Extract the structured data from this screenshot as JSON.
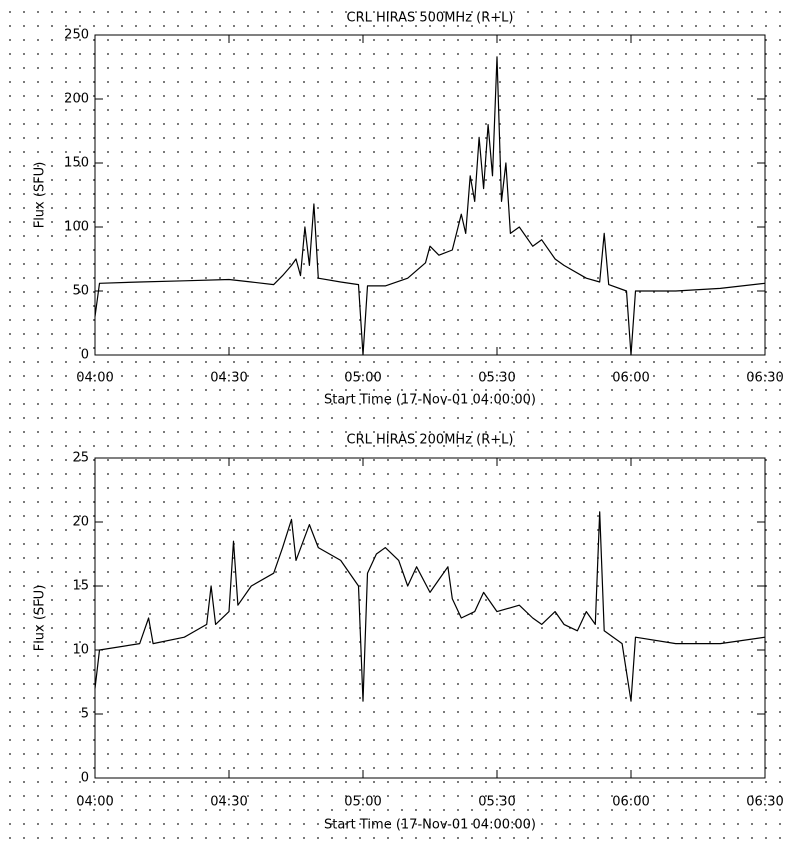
{
  "chart_data": [
    {
      "type": "line",
      "title": "CRL HIRAS 500MHz (R+L)",
      "xlabel": "Start Time (17-Nov-01 04:00:00)",
      "ylabel": "Flux (SFU)",
      "color": "#000000",
      "x": [
        "04:00",
        "04:01",
        "04:10",
        "04:20",
        "04:30",
        "04:35",
        "04:40",
        "04:42",
        "04:44",
        "04:45",
        "04:46",
        "04:47",
        "04:48",
        "04:49",
        "04:50",
        "04:55",
        "04:59",
        "05:00",
        "05:01",
        "05:05",
        "05:10",
        "05:14",
        "05:15",
        "05:17",
        "05:20",
        "05:22",
        "05:23",
        "05:24",
        "05:25",
        "05:26",
        "05:27",
        "05:28",
        "05:29",
        "05:30",
        "05:31",
        "05:32",
        "05:33",
        "05:35",
        "05:38",
        "05:40",
        "05:43",
        "05:45",
        "05:50",
        "05:53",
        "05:54",
        "05:55",
        "05:59",
        "06:00",
        "06:01",
        "06:10",
        "06:20",
        "06:30"
      ],
      "values": [
        30,
        56,
        57,
        58,
        59,
        57,
        55,
        62,
        70,
        75,
        62,
        100,
        70,
        118,
        60,
        57,
        55,
        0,
        54,
        54,
        60,
        72,
        85,
        78,
        82,
        110,
        95,
        140,
        120,
        170,
        130,
        180,
        140,
        233,
        120,
        150,
        95,
        100,
        85,
        90,
        75,
        70,
        60,
        57,
        95,
        55,
        50,
        0,
        50,
        50,
        52,
        56
      ],
      "xlim": [
        "04:00",
        "06:30"
      ],
      "xticks": [
        "04:00",
        "04:30",
        "05:00",
        "05:30",
        "06:00",
        "06:30"
      ],
      "ylim": [
        0,
        250
      ],
      "yticks": [
        0,
        50,
        100,
        150,
        200,
        250
      ]
    },
    {
      "type": "line",
      "title": "CRL HIRAS 200MHz (R+L)",
      "xlabel": "Start Time (17-Nov-01 04:00:00)",
      "ylabel": "Flux (SFU)",
      "color": "#000000",
      "x": [
        "04:00",
        "04:01",
        "04:10",
        "04:12",
        "04:13",
        "04:20",
        "04:25",
        "04:26",
        "04:27",
        "04:30",
        "04:31",
        "04:32",
        "04:35",
        "04:40",
        "04:42",
        "04:44",
        "04:45",
        "04:48",
        "04:50",
        "04:55",
        "04:59",
        "05:00",
        "05:01",
        "05:03",
        "05:05",
        "05:08",
        "05:10",
        "05:12",
        "05:15",
        "05:17",
        "05:19",
        "05:20",
        "05:22",
        "05:25",
        "05:27",
        "05:30",
        "05:35",
        "05:38",
        "05:40",
        "05:43",
        "05:45",
        "05:48",
        "05:50",
        "05:52",
        "05:53",
        "05:54",
        "05:58",
        "06:00",
        "06:01",
        "06:10",
        "06:20",
        "06:30"
      ],
      "values": [
        7,
        10,
        10.5,
        12.5,
        10.5,
        11,
        12,
        15,
        12,
        13,
        18.5,
        13.5,
        15,
        16,
        18,
        20.2,
        17,
        19.8,
        18,
        17,
        15,
        6,
        16,
        17.5,
        18,
        17,
        15,
        16.5,
        14.5,
        15.5,
        16.5,
        14,
        12.5,
        13,
        14.5,
        13,
        13.5,
        12.5,
        12,
        13,
        12,
        11.5,
        13,
        12,
        20.8,
        11.5,
        10.5,
        6,
        11,
        10.5,
        10.5,
        11
      ],
      "xlim": [
        "04:00",
        "06:30"
      ],
      "xticks": [
        "04:00",
        "04:30",
        "05:00",
        "05:30",
        "06:00",
        "06:30"
      ],
      "ylim": [
        0,
        25
      ],
      "yticks": [
        0,
        5,
        10,
        15,
        20,
        25
      ]
    }
  ]
}
